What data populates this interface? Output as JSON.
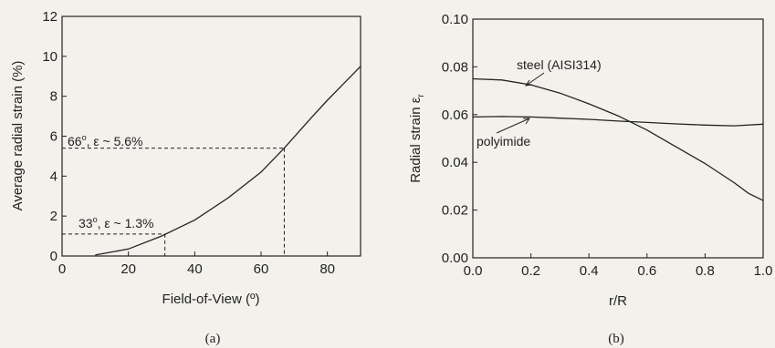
{
  "colors": {
    "background": "#f3f1ec",
    "ink": "#222222"
  },
  "chart_data": [
    {
      "type": "line",
      "caption": "(a)",
      "xlabel": "Field-of-View (º)",
      "ylabel": "Average radial strain (%)",
      "xlim": [
        0,
        90
      ],
      "ylim": [
        0,
        12
      ],
      "xticks": [
        "0",
        "20",
        "40",
        "60",
        "80"
      ],
      "yticks": [
        "0",
        "2",
        "4",
        "6",
        "8",
        "10",
        "12"
      ],
      "grid": false,
      "series": [
        {
          "x": [
            10,
            20,
            30,
            40,
            50,
            60,
            67,
            75,
            80,
            90
          ],
          "y": [
            0.05,
            0.35,
            1.0,
            1.8,
            2.9,
            4.2,
            5.4,
            6.9,
            7.8,
            9.5
          ]
        }
      ],
      "annotations": [
        {
          "label_a": "66",
          "label_b": "o",
          "label_c": ", ε ~ 5.6%",
          "x": 67,
          "y": 5.4
        },
        {
          "label_a": "33",
          "label_b": "o",
          "label_c": ", ε ~ 1.3%",
          "x": 31,
          "y": 1.1
        }
      ]
    },
    {
      "type": "line",
      "caption": "(b)",
      "xlabel": "r/R",
      "ylabel_main": "Radial strain ε",
      "ylabel_sub": "r",
      "xlim": [
        0.0,
        1.0
      ],
      "ylim": [
        0.0,
        0.1
      ],
      "xticks": [
        "0.0",
        "0.2",
        "0.4",
        "0.6",
        "0.8",
        "1.0"
      ],
      "yticks": [
        "0.00",
        "0.02",
        "0.04",
        "0.06",
        "0.08",
        "0.10"
      ],
      "grid": false,
      "series": [
        {
          "name": "steel (AISI314)",
          "x": [
            0.0,
            0.1,
            0.2,
            0.3,
            0.4,
            0.5,
            0.6,
            0.7,
            0.8,
            0.9,
            0.95,
            1.0
          ],
          "y": [
            0.075,
            0.0745,
            0.0725,
            0.069,
            0.0645,
            0.0595,
            0.0535,
            0.0465,
            0.0395,
            0.0315,
            0.027,
            0.024
          ]
        },
        {
          "name": "polyimide",
          "x": [
            0.0,
            0.1,
            0.2,
            0.3,
            0.4,
            0.5,
            0.6,
            0.7,
            0.8,
            0.9,
            1.0
          ],
          "y": [
            0.059,
            0.0592,
            0.059,
            0.0585,
            0.058,
            0.0573,
            0.0567,
            0.0561,
            0.0556,
            0.0553,
            0.056
          ]
        }
      ]
    }
  ]
}
